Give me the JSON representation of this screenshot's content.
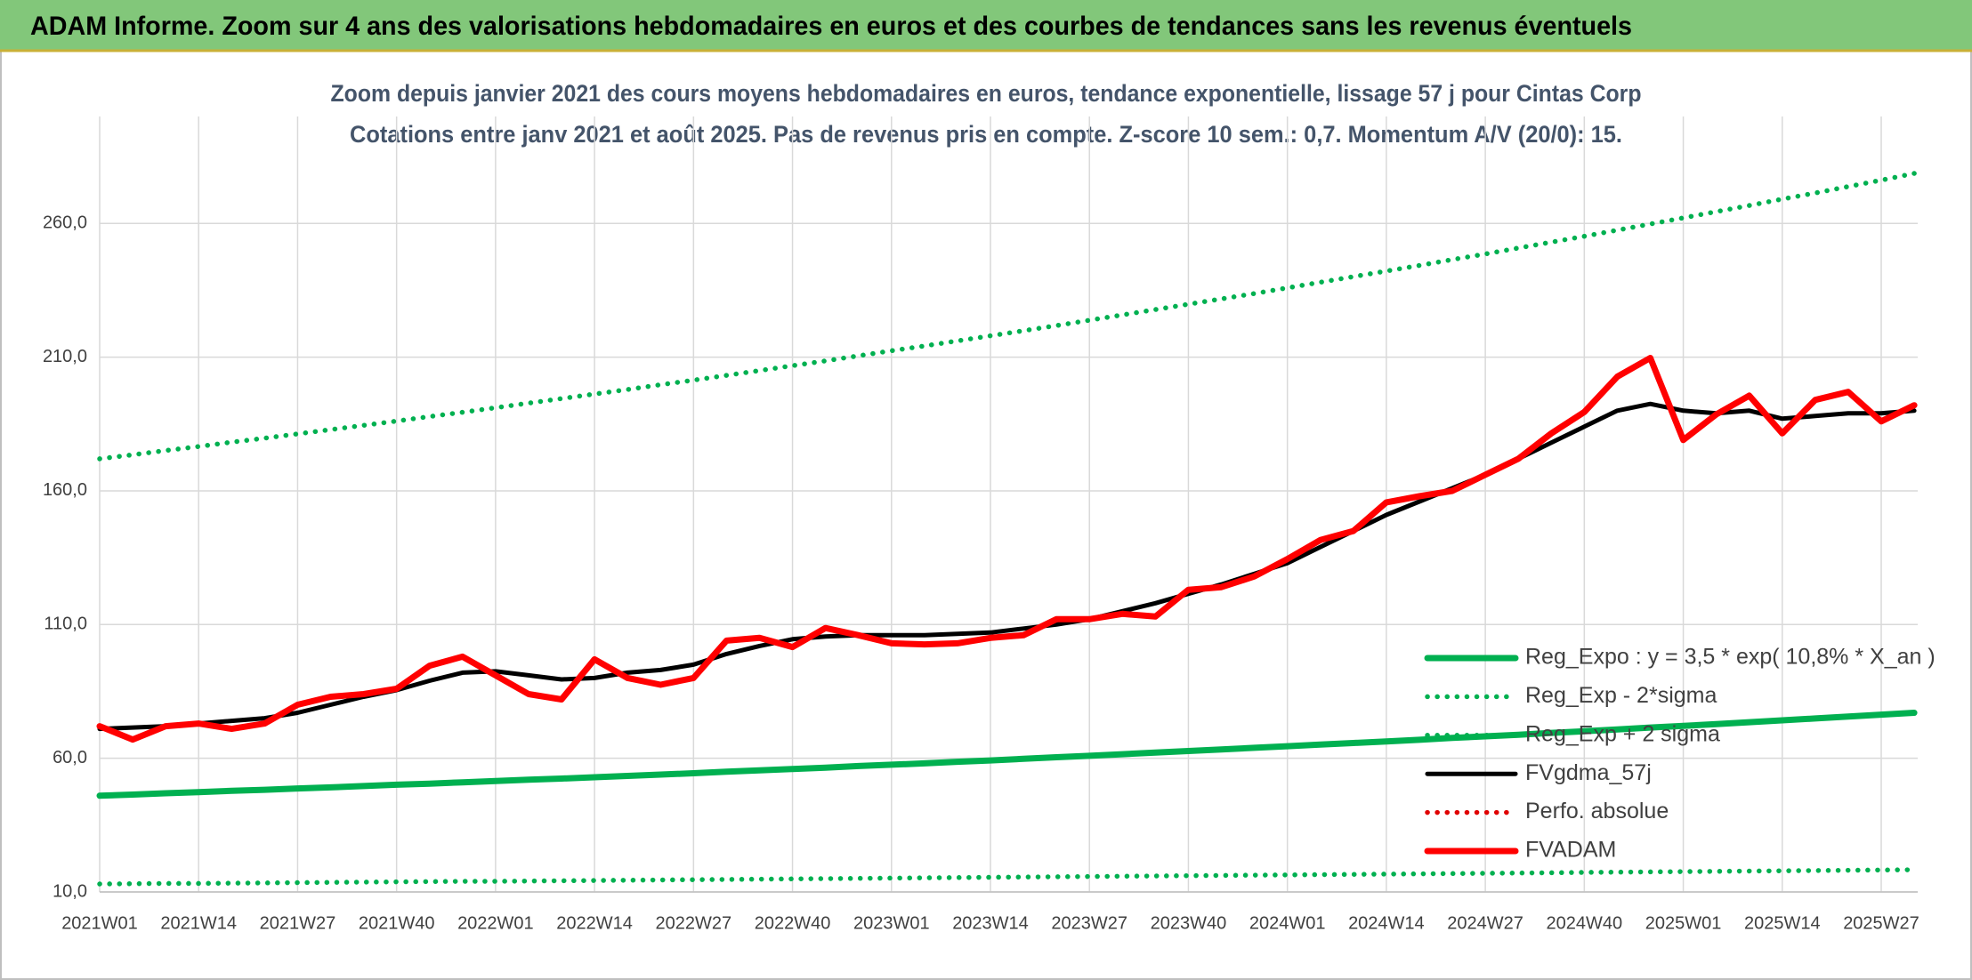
{
  "chart_data": {
    "type": "line",
    "header": "ADAM Informe. Zoom sur 4 ans des valorisations hebdomadaires en euros et des courbes de tendances sans les revenus éventuels",
    "title": "Zoom depuis janvier 2021 des cours moyens hebdomadaires en euros, tendance exponentielle, lissage 57 j pour Cintas Corp",
    "subtitle": "Cotations entre janv 2021 et août 2025. Pas de revenus pris en compte. Z-score 10 sem.: 0,7. Momentum A/V (20/0): 15.",
    "categories": [
      "2021W01",
      null,
      null,
      "2021W14",
      null,
      null,
      "2021W27",
      null,
      null,
      "2021W40",
      null,
      null,
      "2022W01",
      null,
      null,
      "2022W14",
      null,
      null,
      "2022W27",
      null,
      null,
      "2022W40",
      null,
      null,
      "2023W01",
      null,
      null,
      "2023W14",
      null,
      null,
      "2023W27",
      null,
      null,
      "2023W40",
      null,
      null,
      "2024W01",
      null,
      null,
      "2024W14",
      null,
      null,
      "2024W27",
      null,
      null,
      "2024W40",
      null,
      null,
      "2025W01",
      null,
      null,
      "2025W14",
      null,
      null,
      "2025W27",
      null
    ],
    "ylim": [
      10,
      300
    ],
    "yticks": [
      {
        "value": 10,
        "label": "10,0"
      },
      {
        "value": 60,
        "label": "60,0"
      },
      {
        "value": 110,
        "label": "110,0"
      },
      {
        "value": 160,
        "label": "160,0"
      },
      {
        "value": 210,
        "label": "210,0"
      },
      {
        "value": 260,
        "label": "260,0"
      }
    ],
    "grid": true,
    "legend": "lower right",
    "series": [
      {
        "name": "Reg_Expo : y = 3,5 * exp( 10,8% *  X_an )",
        "color": "#00b050",
        "dash": "solid",
        "values": [
          46.0,
          46.4,
          46.9,
          47.3,
          47.8,
          48.2,
          48.7,
          49.1,
          49.6,
          50.1,
          50.5,
          51.0,
          51.5,
          52.0,
          52.4,
          52.9,
          53.4,
          53.9,
          54.4,
          55.0,
          55.5,
          56.0,
          56.5,
          57.1,
          57.6,
          58.1,
          58.7,
          59.2,
          59.8,
          60.4,
          60.9,
          61.5,
          62.1,
          62.7,
          63.3,
          63.9,
          64.5,
          65.1,
          65.7,
          66.3,
          66.9,
          67.6,
          68.2,
          68.8,
          69.5,
          70.1,
          70.8,
          71.5,
          72.1,
          72.8,
          73.5,
          74.2,
          74.9,
          75.6,
          76.3,
          77.0
        ]
      },
      {
        "name": "Reg_Exp - 2*sigma",
        "color": "#00b050",
        "dash": "dotted",
        "values": [
          13.0,
          13.1,
          13.2,
          13.2,
          13.3,
          13.4,
          13.5,
          13.6,
          13.7,
          13.8,
          13.9,
          14.0,
          14.0,
          14.1,
          14.2,
          14.3,
          14.4,
          14.5,
          14.6,
          14.7,
          14.8,
          14.9,
          15.0,
          15.1,
          15.2,
          15.3,
          15.4,
          15.5,
          15.6,
          15.7,
          15.8,
          15.9,
          16.0,
          16.1,
          16.2,
          16.3,
          16.4,
          16.5,
          16.6,
          16.7,
          16.8,
          16.9,
          17.0,
          17.1,
          17.2,
          17.3,
          17.4,
          17.5,
          17.6,
          17.7,
          17.8,
          17.9,
          18.0,
          18.1,
          18.2,
          18.3
        ]
      },
      {
        "name": "Reg_Exp + 2 sigma",
        "color": "#00b050",
        "dash": "dotted",
        "values": [
          172.0,
          173.5,
          175.1,
          176.6,
          178.2,
          179.7,
          181.3,
          182.9,
          184.5,
          186.1,
          187.8,
          189.4,
          191.1,
          192.8,
          194.5,
          196.2,
          197.9,
          199.7,
          201.4,
          203.2,
          205.0,
          206.8,
          208.6,
          210.5,
          212.4,
          214.2,
          216.1,
          218.0,
          219.9,
          221.8,
          223.8,
          225.8,
          227.8,
          229.8,
          231.8,
          233.8,
          235.9,
          238.0,
          240.1,
          242.2,
          244.3,
          246.5,
          248.6,
          250.8,
          253.0,
          255.2,
          257.5,
          259.8,
          262.1,
          264.4,
          266.7,
          269.1,
          271.4,
          273.8,
          276.2,
          278.7
        ]
      },
      {
        "name": "FVgdma_57j",
        "color": "#000000",
        "dash": "solid",
        "values": [
          71,
          71.5,
          72,
          73,
          74,
          75,
          77,
          80,
          83,
          85.5,
          89,
          92,
          92.5,
          91,
          89.5,
          90,
          92,
          93,
          95,
          99,
          102,
          104.5,
          105.5,
          106,
          106,
          106,
          106.5,
          107,
          108.5,
          110,
          112,
          115,
          118,
          121.5,
          125,
          129,
          133,
          139,
          145,
          151,
          156,
          161,
          166,
          172,
          178,
          184,
          190,
          192.5,
          190,
          189,
          190,
          187,
          188,
          189,
          189,
          190
        ]
      },
      {
        "name": "Perfo. absolue",
        "color": "#e00000",
        "dash": "dotted",
        "values": [
          null,
          null,
          null,
          null,
          null,
          null,
          null,
          null,
          null,
          null,
          null,
          null,
          null,
          null,
          null,
          null,
          null,
          null,
          null,
          null,
          null,
          null,
          null,
          null,
          null,
          null,
          null,
          null,
          null,
          null,
          null,
          null,
          null,
          null,
          null,
          null,
          null,
          null,
          null,
          null,
          null,
          null,
          null,
          null,
          null,
          null,
          null,
          null,
          null,
          null,
          null,
          null,
          null,
          null,
          null,
          null
        ]
      },
      {
        "name": "FVADAM",
        "color": "#ff0000",
        "dash": "solid",
        "values": [
          72,
          67,
          72,
          73,
          71,
          73,
          80,
          83,
          84,
          86,
          94.6,
          98,
          91,
          84,
          82,
          97,
          90,
          87.5,
          90,
          104,
          105,
          101.6,
          108.7,
          106,
          103,
          102.6,
          103,
          105,
          106,
          112,
          112,
          114,
          113,
          123,
          124,
          128,
          134.5,
          141.6,
          145,
          155.7,
          158,
          160,
          166,
          172,
          181.5,
          189.5,
          202.7,
          209.7,
          179,
          188.6,
          195.6,
          181.5,
          194,
          197,
          186,
          192
        ]
      }
    ]
  }
}
